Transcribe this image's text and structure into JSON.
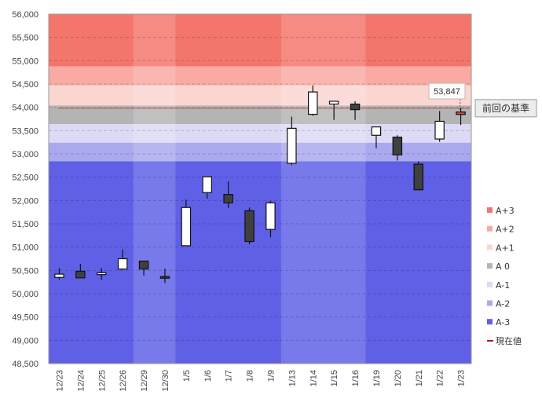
{
  "chart_data": {
    "type": "candlestick",
    "ylim": [
      48500,
      56000
    ],
    "yticks": [
      48500,
      49000,
      49500,
      50000,
      50500,
      51000,
      51500,
      52000,
      52500,
      53000,
      53500,
      54000,
      54500,
      55000,
      55500,
      56000
    ],
    "ytick_labels": [
      "48,500",
      "49,000",
      "49,500",
      "50,000",
      "50,500",
      "51,000",
      "51,500",
      "52,000",
      "52,500",
      "53,000",
      "53,500",
      "54,000",
      "54,500",
      "55,000",
      "55,500",
      "56,000"
    ],
    "categories": [
      "12/23",
      "12/24",
      "12/25",
      "12/26",
      "12/29",
      "12/30",
      "1/5",
      "1/6",
      "1/7",
      "1/8",
      "1/9",
      "1/13",
      "1/14",
      "1/15",
      "1/16",
      "1/19",
      "1/20",
      "1/21",
      "1/22",
      "1/23"
    ],
    "candles": [
      {
        "open": 50350,
        "close": 50420,
        "high": 50550,
        "low": 50300
      },
      {
        "open": 50480,
        "close": 50340,
        "high": 50640,
        "low": 50340
      },
      {
        "open": 50410,
        "close": 50450,
        "high": 50550,
        "low": 50300
      },
      {
        "open": 50530,
        "close": 50750,
        "high": 50950,
        "low": 50530
      },
      {
        "open": 50700,
        "close": 50530,
        "high": 50700,
        "low": 50390
      },
      {
        "open": 50350,
        "close": 50320,
        "high": 50540,
        "low": 50230
      },
      {
        "open": 51030,
        "close": 51850,
        "high": 52020,
        "low": 51030
      },
      {
        "open": 52170,
        "close": 52510,
        "high": 52510,
        "low": 52040
      },
      {
        "open": 52130,
        "close": 51950,
        "high": 52410,
        "low": 51840
      },
      {
        "open": 51780,
        "close": 51120,
        "high": 51850,
        "low": 51060
      },
      {
        "open": 51380,
        "close": 51950,
        "high": 51990,
        "low": 51210
      },
      {
        "open": 52800,
        "close": 53550,
        "high": 53800,
        "low": 52760
      },
      {
        "open": 53850,
        "close": 54330,
        "high": 54470,
        "low": 53820
      },
      {
        "open": 54070,
        "close": 54130,
        "high": 54130,
        "low": 53730
      },
      {
        "open": 54070,
        "close": 53950,
        "high": 54130,
        "low": 53730
      },
      {
        "open": 53400,
        "close": 53580,
        "high": 53580,
        "low": 53120
      },
      {
        "open": 53360,
        "close": 52980,
        "high": 53400,
        "low": 52860
      },
      {
        "open": 52780,
        "close": 52230,
        "high": 52840,
        "low": 52230
      },
      {
        "open": 53320,
        "close": 53700,
        "high": 53920,
        "low": 53260
      },
      {
        "open": 53900,
        "close": 53847,
        "high": 53990,
        "low": 53620
      }
    ],
    "reference_line": {
      "value": 53980,
      "label": "前回の基準",
      "color": "#c0504d"
    },
    "current_value_label": "53,847",
    "zones": [
      {
        "name": "A+3",
        "from": 54880,
        "to": 56000,
        "color": "#f4756b"
      },
      {
        "name": "A+2",
        "from": 54470,
        "to": 54880,
        "color": "#f9aaa3"
      },
      {
        "name": "A+1",
        "from": 54040,
        "to": 54470,
        "color": "#fcd6d1"
      },
      {
        "name": "A 0",
        "from": 53640,
        "to": 54040,
        "color": "#b4b4b4"
      },
      {
        "name": "A-1",
        "from": 53240,
        "to": 53640,
        "color": "#dcdaf5"
      },
      {
        "name": "A-2",
        "from": 52840,
        "to": 53240,
        "color": "#aaa9ef"
      },
      {
        "name": "A-3",
        "from": 48500,
        "to": 52840,
        "color": "#5f60e6"
      }
    ],
    "legend": [
      {
        "label": "A+3",
        "color": "#f4756b",
        "kind": "box"
      },
      {
        "label": "A+2",
        "color": "#f9aaa3",
        "kind": "box"
      },
      {
        "label": "A+1",
        "color": "#fcd6d1",
        "kind": "box"
      },
      {
        "label": "A 0",
        "color": "#b4b4b4",
        "kind": "box"
      },
      {
        "label": "A-1",
        "color": "#dcdaf5",
        "kind": "box"
      },
      {
        "label": "A-2",
        "color": "#aaa9ef",
        "kind": "box"
      },
      {
        "label": "A-3",
        "color": "#5f60e6",
        "kind": "box"
      },
      {
        "label": "現在値",
        "color": "#c00000",
        "kind": "line"
      }
    ],
    "week_shading": [
      {
        "from_index": 4,
        "to_index": 5
      },
      {
        "from_index": 11,
        "to_index": 14
      }
    ],
    "candle_up_color": "#ffffff",
    "candle_down_color": "#404040",
    "grid": true,
    "legend_position": "right"
  }
}
